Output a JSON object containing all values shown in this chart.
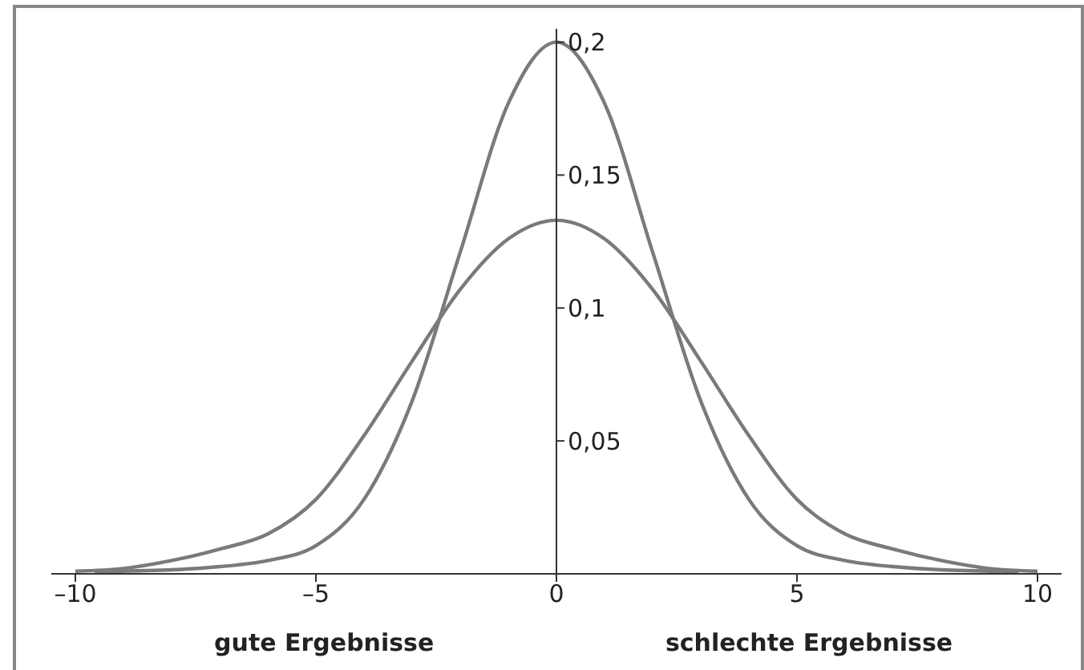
{
  "chart_data": {
    "type": "line",
    "x": [
      -10,
      -9,
      -8,
      -7,
      -6,
      -5,
      -4,
      -3,
      -2,
      -1,
      0,
      1,
      2,
      3,
      4,
      5,
      6,
      7,
      8,
      9,
      10
    ],
    "series": [
      {
        "color": "#7a7a7a",
        "values": [
          0.001,
          0.002,
          0.005,
          0.0093,
          0.015,
          0.028,
          0.052,
          0.08,
          0.107,
          0.126,
          0.133,
          0.126,
          0.107,
          0.08,
          0.052,
          0.028,
          0.015,
          0.0093,
          0.005,
          0.002,
          0.001
        ]
      },
      {
        "color": "#7a7a7a",
        "x": [
          -9.6,
          -9,
          -8,
          -7,
          -6,
          -5,
          -4,
          -3,
          -2,
          -1,
          0,
          1,
          2,
          3,
          4,
          5,
          6,
          7,
          8,
          9,
          9.6
        ],
        "values": [
          0.0005,
          0.001,
          0.0015,
          0.0027,
          0.005,
          0.0106,
          0.028,
          0.065,
          0.121,
          0.177,
          0.2,
          0.177,
          0.121,
          0.065,
          0.028,
          0.0106,
          0.005,
          0.0027,
          0.0015,
          0.001,
          0.0005
        ]
      }
    ],
    "xlim": [
      -10.5,
      10.5
    ],
    "xticks": [
      {
        "value": -10,
        "label": "–10"
      },
      {
        "value": -5,
        "label": "–5"
      },
      0,
      5,
      10
    ],
    "ylim": [
      0,
      0.205
    ],
    "yticks": [
      {
        "value": 0.05,
        "label": "0,05"
      },
      {
        "value": 0.1,
        "label": "0,1"
      },
      {
        "value": 0.15,
        "label": "0,15"
      },
      {
        "value": 0.2,
        "label": "0,2"
      }
    ],
    "annotations": [
      "gute Ergebnisse",
      "schlechte Ergebnisse"
    ],
    "marker": "none",
    "line_style": "solid",
    "grid": false,
    "legend": false
  }
}
